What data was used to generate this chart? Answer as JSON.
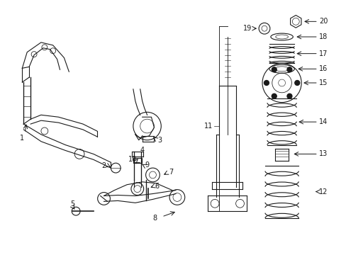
{
  "bg_color": "#ffffff",
  "line_color": "#1a1a1a",
  "figsize": [
    4.89,
    3.6
  ],
  "dpi": 100,
  "fs": 7.0,
  "lw": 0.8
}
